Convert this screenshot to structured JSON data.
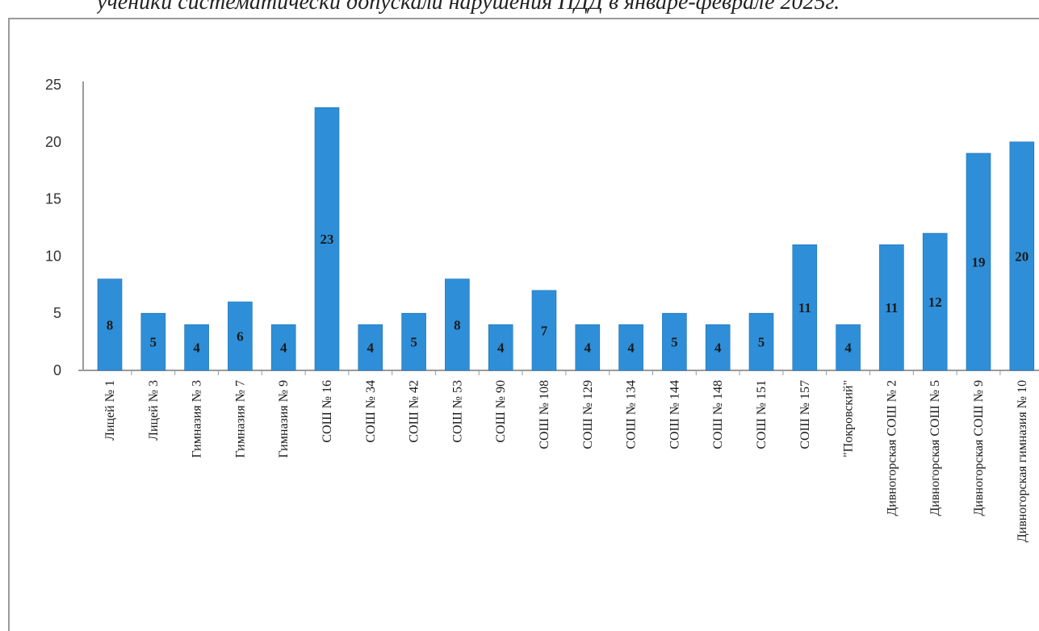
{
  "heading": "ученики систематически допускали нарушения ПДД в январе-феврале 2025г.",
  "chart_data": {
    "type": "bar",
    "title": "",
    "xlabel": "",
    "ylabel": "",
    "ylim": [
      0,
      25
    ],
    "yticks": [
      "0",
      "5",
      "10",
      "15",
      "20",
      "25"
    ],
    "grid": false,
    "bar_color": "#2e8fd8",
    "categories": [
      "Лицей № 1",
      "Лицей № 3",
      "Гимназия № 3",
      "Гимназия № 7",
      "Гимназия № 9",
      "СОШ № 16",
      "СОШ № 34",
      "СОШ № 42",
      "СОШ № 53",
      "СОШ № 90",
      "СОШ № 108",
      "СОШ № 129",
      "СОШ № 134",
      "СОШ № 144",
      "СОШ № 148",
      "СОШ № 151",
      "СОШ № 157",
      "\"Покровский\"",
      "Дивногорская СОШ № 2",
      "Дивногорская СОШ № 5",
      "Дивногорская СОШ № 9",
      "Дивногорская гимназия № 10"
    ],
    "values": [
      8,
      5,
      4,
      6,
      4,
      23,
      4,
      5,
      8,
      4,
      7,
      4,
      4,
      5,
      4,
      5,
      11,
      4,
      11,
      12,
      19,
      20
    ]
  }
}
